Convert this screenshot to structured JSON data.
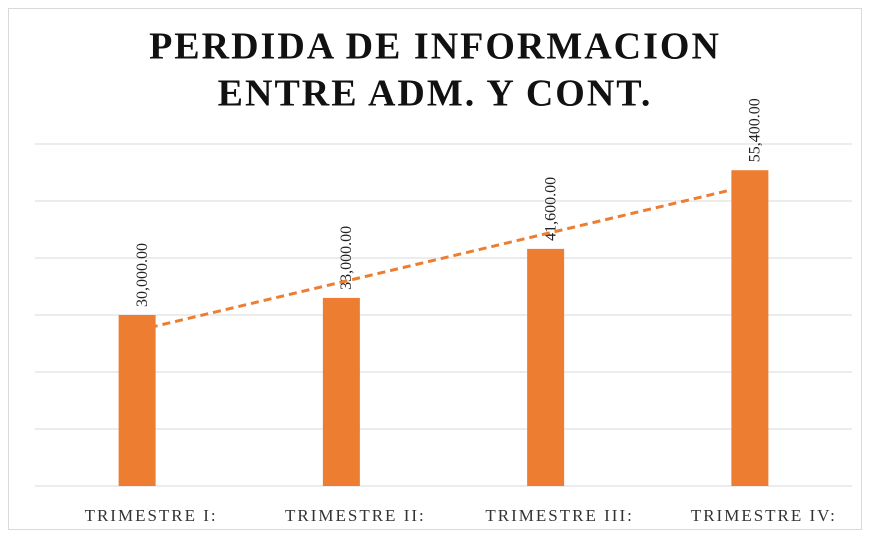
{
  "chart_data": {
    "type": "bar",
    "title": [
      "PERDIDA DE INFORMACION",
      "ENTRE ADM. Y CONT."
    ],
    "categories": [
      "TRIMESTRE I:",
      "TRIMESTRE II:",
      "TRIMESTRE III:",
      "TRIMESTRE IV:"
    ],
    "values": [
      30000,
      33000,
      41600,
      55400
    ],
    "value_labels": [
      "30,000.00",
      "33,000.00",
      "41,600.00",
      "55,400.00"
    ],
    "color": "#ed7d31",
    "trendline": {
      "type": "linear",
      "color": "#ed7d31",
      "dashed": true
    },
    "ylim": [
      0,
      60000
    ],
    "yticks": [
      0,
      10000,
      20000,
      30000,
      40000,
      50000,
      60000
    ],
    "grid": true
  }
}
